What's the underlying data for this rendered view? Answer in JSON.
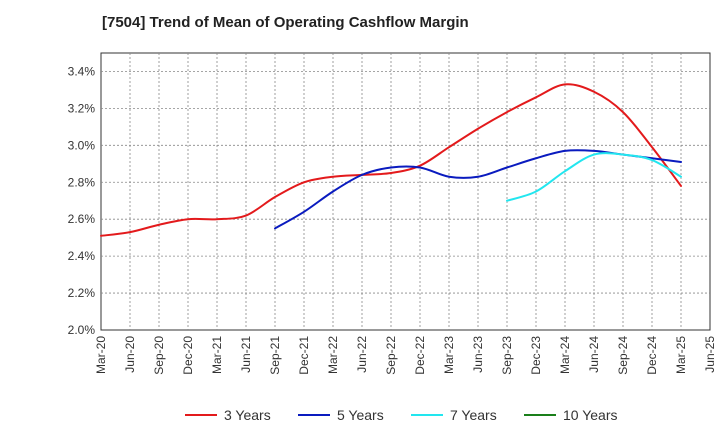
{
  "chart_data": {
    "type": "line",
    "title": "[7504]  Trend of Mean of Operating Cashflow Margin",
    "xlabel": "",
    "ylabel": "",
    "ylim": [
      2.0,
      3.5
    ],
    "y_ticks": [
      "2.0%",
      "2.2%",
      "2.4%",
      "2.6%",
      "2.8%",
      "3.0%",
      "3.2%",
      "3.4%"
    ],
    "x_ticks": [
      "Mar-20",
      "Jun-20",
      "Sep-20",
      "Dec-20",
      "Mar-21",
      "Jun-21",
      "Sep-21",
      "Dec-21",
      "Mar-22",
      "Jun-22",
      "Sep-22",
      "Dec-22",
      "Mar-23",
      "Jun-23",
      "Sep-23",
      "Dec-23",
      "Mar-24",
      "Jun-24",
      "Sep-24",
      "Dec-24",
      "Mar-25",
      "Jun-25"
    ],
    "grid": true,
    "legend_position": "bottom",
    "series": [
      {
        "name": "3 Years",
        "color": "#e31a1c",
        "start_index": 0,
        "values": [
          2.51,
          2.53,
          2.57,
          2.6,
          2.6,
          2.62,
          2.72,
          2.8,
          2.83,
          2.84,
          2.85,
          2.89,
          2.99,
          3.09,
          3.18,
          3.26,
          3.33,
          3.29,
          3.18,
          2.99,
          2.78
        ]
      },
      {
        "name": "5 Years",
        "color": "#0a1bbf",
        "start_index": 6,
        "values": [
          2.55,
          2.64,
          2.75,
          2.84,
          2.88,
          2.88,
          2.83,
          2.83,
          2.88,
          2.93,
          2.97,
          2.97,
          2.95,
          2.93,
          2.91
        ]
      },
      {
        "name": "7 Years",
        "color": "#22e6ef",
        "start_index": 14,
        "values": [
          2.7,
          2.75,
          2.86,
          2.95,
          2.95,
          2.92,
          2.83
        ]
      },
      {
        "name": "10 Years",
        "color": "#1a7f1a",
        "start_index": 0,
        "values": []
      }
    ]
  }
}
